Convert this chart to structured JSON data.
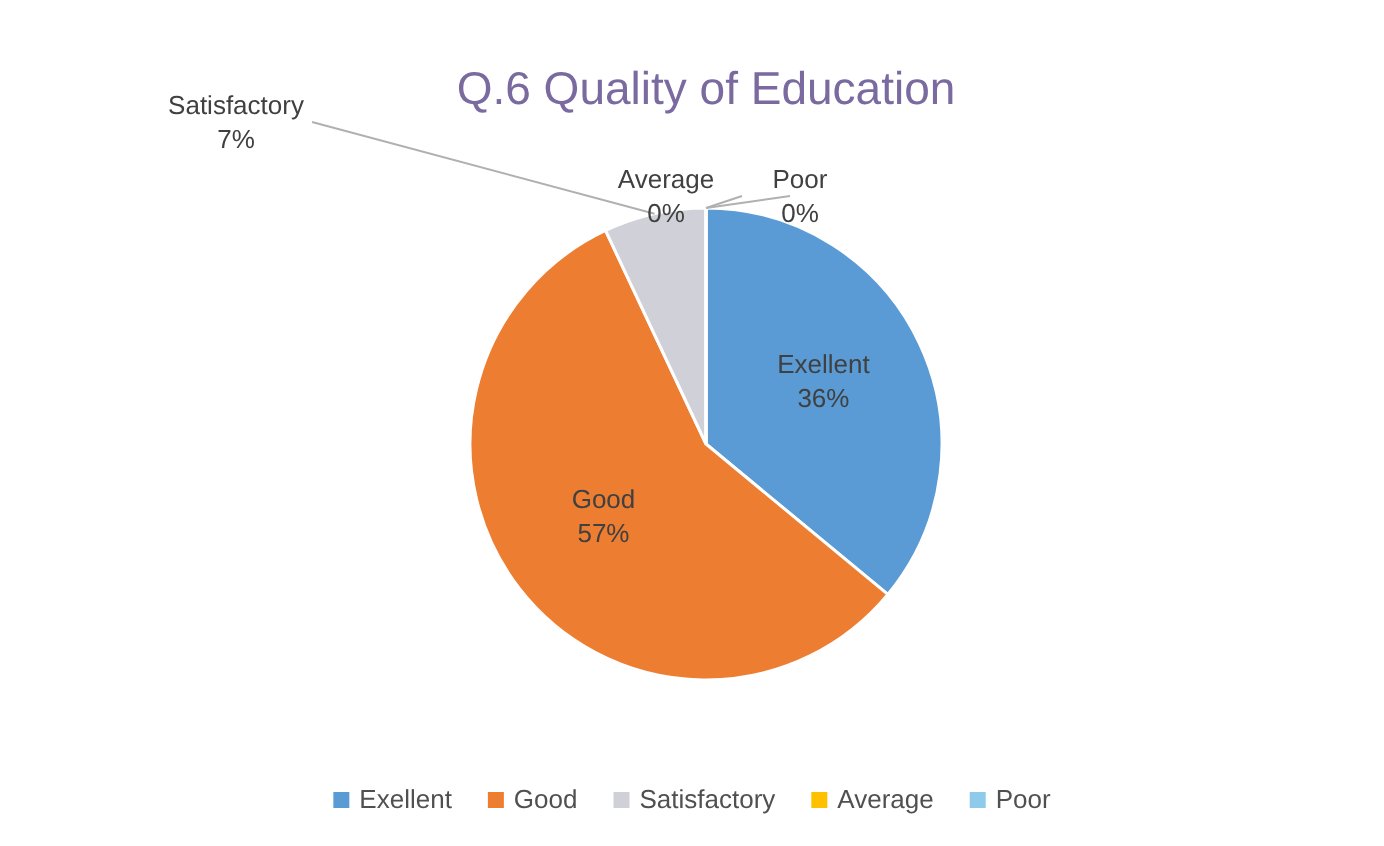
{
  "chart_data": {
    "type": "pie",
    "title": "Q.6 Quality of Education",
    "categories": [
      "Exellent",
      "Good",
      "Satisfactory",
      "Average",
      "Poor"
    ],
    "values": [
      36,
      57,
      7,
      0,
      0
    ],
    "colors": [
      "#5b9bd5",
      "#ed7d31",
      "#d0d0d8",
      "#ffc000",
      "#8ecbea"
    ],
    "value_labels": [
      "36%",
      "57%",
      "7%",
      "0%",
      "0%"
    ],
    "legend": "bottom"
  }
}
